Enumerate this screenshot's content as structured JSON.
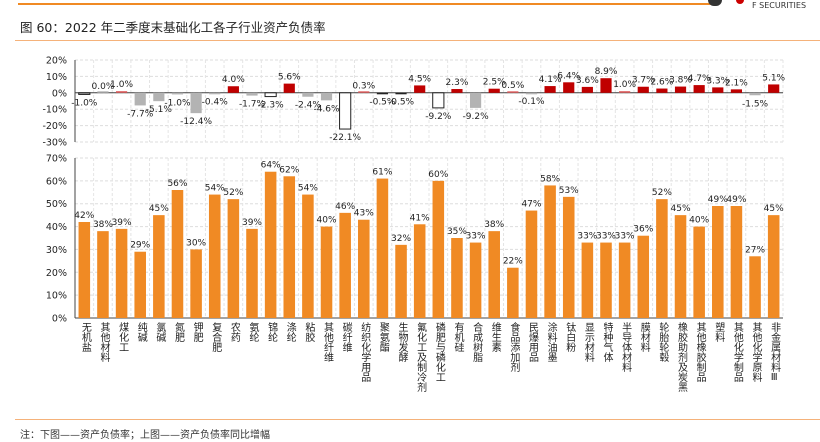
{
  "header": {
    "title": "图 60：2022 年二季度末基础化工各子行业资产负债率",
    "brand_text": "F SECURITIES"
  },
  "footnote": "注：下图——资产负债率；上图——资产负债率同比增幅",
  "colors": {
    "orange": "#F08A24",
    "red": "#C00000",
    "light_red": "#E06060",
    "gray": "#B3B3B3",
    "black": "#222222",
    "white": "#FFFFFF"
  },
  "chart_data": [
    {
      "type": "bar",
      "position": "top",
      "ylim": [
        -30,
        20
      ],
      "yticks": [
        "20%",
        "10%",
        "0%",
        "-10%",
        "-20%",
        "-30%"
      ],
      "grid": true,
      "values": [
        -1.0,
        0.0,
        1.0,
        -7.7,
        -5.1,
        -1.0,
        -12.4,
        -0.4,
        4.0,
        -1.7,
        -2.3,
        5.6,
        -2.4,
        -4.6,
        -22.1,
        0.3,
        -0.5,
        -0.5,
        4.5,
        -9.2,
        2.3,
        -9.2,
        2.5,
        0.5,
        -0.1,
        4.1,
        6.4,
        3.6,
        8.9,
        1.0,
        3.7,
        2.6,
        3.8,
        4.7,
        3.3,
        2.1,
        -1.5,
        5.1
      ],
      "labels": [
        "-1.0%",
        "0.0%",
        "1.0%",
        "-7.7%",
        "-5.1%",
        "-1.0%",
        "-12.4%",
        "-0.4%",
        "4.0%",
        "-1.7%",
        "-2.3%",
        "5.6%",
        "-2.4%",
        "-4.6%",
        "-22.1%",
        "0.3%",
        "-0.5%",
        "-0.5%",
        "4.5%",
        "-9.2%",
        "2.3%",
        "-9.2%",
        "2.5%",
        "0.5%",
        "-0.1%",
        "4.1%",
        "6.4%",
        "3.6%",
        "8.9%",
        "1.0%",
        "3.7%",
        "2.6%",
        "3.8%",
        "4.7%",
        "3.3%",
        "2.1%",
        "-1.5%",
        "5.1%"
      ],
      "bar_styles": [
        "gray",
        "gray",
        "light_red",
        "gray",
        "gray",
        "gray",
        "gray",
        "gray",
        "red",
        "gray",
        "white",
        "red",
        "gray",
        "gray",
        "white",
        "light_red",
        "black",
        "black",
        "red",
        "white",
        "red",
        "gray",
        "red",
        "light_red",
        "gray",
        "red",
        "red",
        "red",
        "red",
        "light_red",
        "red",
        "red",
        "red",
        "red",
        "red",
        "red",
        "gray",
        "red"
      ]
    },
    {
      "type": "bar",
      "position": "bottom",
      "ylim": [
        0,
        70
      ],
      "yticks": [
        "70%",
        "60%",
        "50%",
        "40%",
        "30%",
        "20%",
        "10%",
        "0%"
      ],
      "grid": true,
      "categories": [
        "无机盐",
        "其他材料",
        "煤化工",
        "纯碱",
        "氯碱",
        "氮肥",
        "钾肥",
        "复合肥",
        "农药",
        "氨纶",
        "锦纶",
        "涤纶",
        "粘胶",
        "其他纤维",
        "碳纤维",
        "纺织化学用品",
        "聚氨酯",
        "生物发酵",
        "氟化工及制冷剂",
        "磷肥与磷化工",
        "有机硅",
        "合成树脂",
        "维生素",
        "食品添加剂",
        "民爆用品",
        "涂料油墨",
        "钛白粉",
        "显示材料",
        "特种气体",
        "半导体材料",
        "膜材料",
        "轮胎轮毂",
        "橡胶助剂及炭黑",
        "其他橡胶制品",
        "塑料",
        "其他化学制品",
        "其他化学原料",
        "非金属材料Ⅲ"
      ],
      "values": [
        42,
        38,
        39,
        29,
        45,
        56,
        30,
        54,
        52,
        39,
        64,
        62,
        54,
        40,
        46,
        43,
        61,
        32,
        41,
        60,
        35,
        33,
        38,
        22,
        47,
        58,
        53,
        33,
        33,
        33,
        36,
        52,
        45,
        40,
        49,
        49,
        27,
        45
      ],
      "labels": [
        "42%",
        "38%",
        "39%",
        "29%",
        "45%",
        "56%",
        "30%",
        "54%",
        "52%",
        "39%",
        "64%",
        "62%",
        "54%",
        "40%",
        "46%",
        "43%",
        "61%",
        "32%",
        "41%",
        "60%",
        "35%",
        "33%",
        "38%",
        "22%",
        "47%",
        "58%",
        "53%",
        "33%",
        "33%",
        "33%",
        "36%",
        "52%",
        "45%",
        "40%",
        "49%",
        "49%",
        "27%",
        "45%"
      ]
    }
  ]
}
